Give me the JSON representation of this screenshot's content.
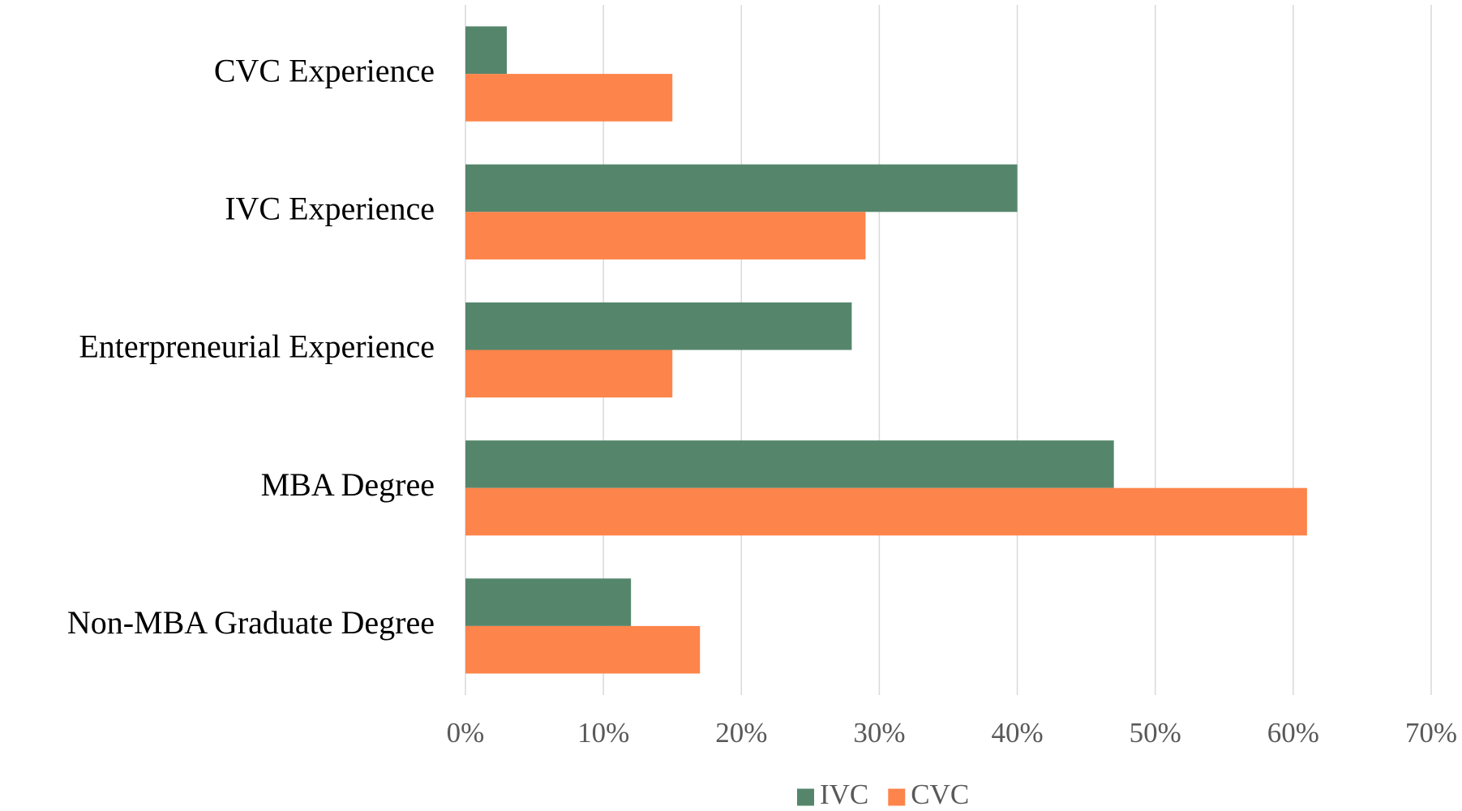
{
  "chart_data": {
    "type": "bar",
    "orientation": "horizontal",
    "categories": [
      "CVC Experience",
      "IVC Experience",
      "Enterpreneurial Experience",
      "MBA Degree",
      "Non-MBA Graduate Degree"
    ],
    "series": [
      {
        "name": "IVC",
        "color": "#55866c",
        "values": [
          3,
          40,
          28,
          47,
          12
        ]
      },
      {
        "name": "CVC",
        "color": "#fd844b",
        "values": [
          15,
          29,
          15,
          61,
          17
        ]
      }
    ],
    "xlim": [
      0,
      70
    ],
    "xticks": [
      {
        "value": 0,
        "label": "0%"
      },
      {
        "value": 10,
        "label": "10%"
      },
      {
        "value": 20,
        "label": "20%"
      },
      {
        "value": 30,
        "label": "30%"
      },
      {
        "value": 40,
        "label": "40%"
      },
      {
        "value": 50,
        "label": "50%"
      },
      {
        "value": 60,
        "label": "60%"
      },
      {
        "value": 70,
        "label": "70%"
      }
    ],
    "grid": true,
    "legend": "bottom"
  }
}
